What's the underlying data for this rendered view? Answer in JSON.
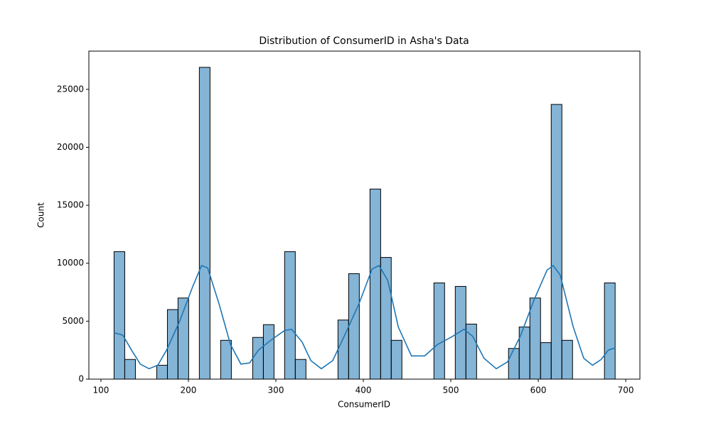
{
  "chart_data": {
    "type": "histogram",
    "title": "Distribution of ConsumerID in Asha's Data",
    "x_label": "ConsumerID",
    "y_label": "Count",
    "bins": [
      115,
      127.2,
      139.4,
      151.6,
      163.8,
      176,
      188.1,
      200.3,
      212.5,
      224.7,
      236.9,
      249.1,
      261.3,
      273.5,
      285.7,
      297.9,
      310,
      322.2,
      334.4,
      346.6,
      358.8,
      371,
      383.2,
      395.4,
      407.6,
      419.8,
      431.9,
      444.1,
      456.3,
      468.5,
      480.7,
      492.9,
      505.1,
      517.3,
      529.5,
      541.7,
      553.8,
      566,
      578.2,
      590.4,
      602.6,
      614.8,
      627,
      639.2,
      651.4,
      663.6,
      675.7,
      687.9
    ],
    "counts": [
      11000,
      1700,
      0,
      0,
      1200,
      6000,
      7000,
      0,
      26900,
      0,
      3350,
      0,
      0,
      3600,
      4700,
      0,
      11000,
      1700,
      0,
      0,
      0,
      5100,
      9100,
      0,
      16400,
      10500,
      3350,
      0,
      0,
      0,
      8300,
      0,
      8000,
      4750,
      0,
      0,
      0,
      2650,
      4500,
      7000,
      3150,
      23700,
      3350,
      0,
      0,
      0,
      8300
    ],
    "color": "#1f77b4",
    "kde": {
      "color": "#1f77b4",
      "x": [
        115,
        125,
        135,
        145,
        155,
        165,
        175,
        190,
        205,
        215,
        222,
        235,
        248,
        260,
        270,
        280,
        295,
        310,
        318,
        330,
        340,
        352,
        365,
        380,
        395,
        410,
        418,
        428,
        440,
        455,
        470,
        485,
        500,
        515,
        525,
        538,
        552,
        565,
        580,
        595,
        610,
        617,
        625,
        640,
        652,
        662,
        672,
        680,
        688
      ],
      "y": [
        4000,
        3800,
        2500,
        1300,
        900,
        1200,
        2500,
        5000,
        8000,
        9800,
        9600,
        6500,
        3000,
        1300,
        1400,
        2500,
        3400,
        4200,
        4300,
        3200,
        1600,
        900,
        1600,
        4000,
        6500,
        9500,
        9800,
        8500,
        4500,
        2000,
        2000,
        3000,
        3600,
        4300,
        3700,
        1800,
        900,
        1500,
        3800,
        6800,
        9400,
        9800,
        9000,
        4500,
        1800,
        1200,
        1700,
        2500,
        2700
      ]
    },
    "xlim": [
      86.2,
      716.2
    ],
    "ylim": [
      0,
      28300
    ],
    "xticks": [
      100,
      200,
      300,
      400,
      500,
      600,
      700
    ],
    "yticks": [
      0,
      5000,
      10000,
      15000,
      20000,
      25000
    ]
  }
}
